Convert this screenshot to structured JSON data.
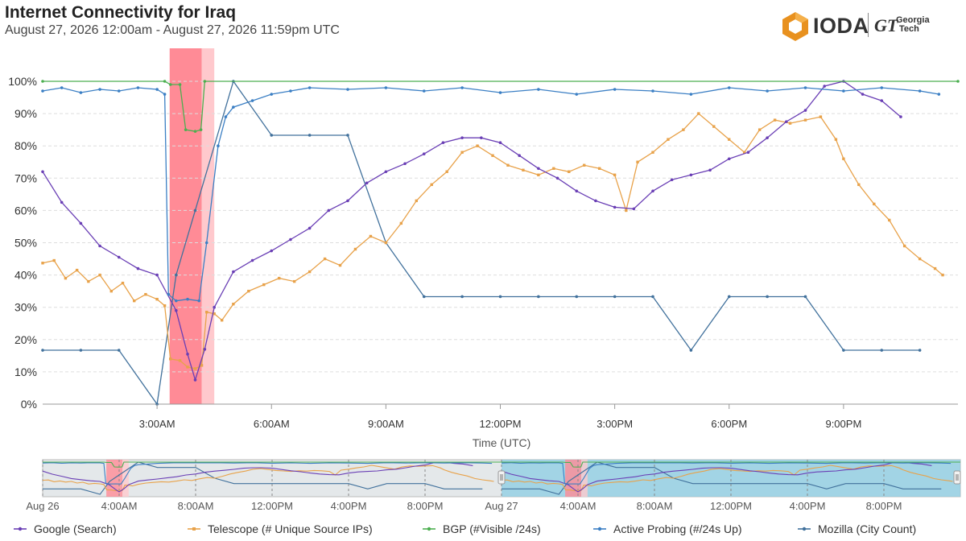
{
  "header": {
    "title": "Internet Connectivity for Iraq",
    "subtitle": "August 27, 2026 12:00am - August 27, 2026 11:59pm UTC"
  },
  "logo": {
    "main": "IODA",
    "partner_mark": "GT",
    "partner_line1": "Georgia",
    "partner_line2": "Tech"
  },
  "colors": {
    "google": "#6a3fb5",
    "telescope": "#e8a24a",
    "bgp": "#4caf50",
    "probing": "#3b7fc4",
    "mozilla": "#41719c",
    "outage": "#ff8b96",
    "outage_light": "#ffc9cd",
    "nav_window": "#8ccde3"
  },
  "chart_data": {
    "type": "line",
    "xlabel": "Time (UTC)",
    "x_unit": "hour of day (UTC)",
    "xlim": [
      0,
      24
    ],
    "ylim": [
      0,
      100
    ],
    "y_ticks": [
      "0%",
      "10%",
      "20%",
      "30%",
      "40%",
      "50%",
      "60%",
      "70%",
      "80%",
      "90%",
      "100%"
    ],
    "x_ticks": [
      {
        "x": 3,
        "label": "3:00AM"
      },
      {
        "x": 6,
        "label": "6:00AM"
      },
      {
        "x": 9,
        "label": "9:00AM"
      },
      {
        "x": 12,
        "label": "12:00PM"
      },
      {
        "x": 15,
        "label": "3:00PM"
      },
      {
        "x": 18,
        "label": "6:00PM"
      },
      {
        "x": 21,
        "label": "9:00PM"
      }
    ],
    "grid": true,
    "legend_position": "bottom",
    "outages": [
      {
        "start": 3.33,
        "end": 4.17,
        "severity": "critical"
      },
      {
        "start": 4.17,
        "end": 4.5,
        "severity": "warning"
      }
    ],
    "series": [
      {
        "name": "Google (Search)",
        "key": "google",
        "points": [
          [
            0,
            72
          ],
          [
            0.5,
            62.5
          ],
          [
            1,
            56
          ],
          [
            1.5,
            49
          ],
          [
            2,
            45.5
          ],
          [
            2.5,
            42
          ],
          [
            3,
            40
          ],
          [
            3.5,
            29
          ],
          [
            3.8,
            15.5
          ],
          [
            4,
            7.5
          ],
          [
            4.25,
            17
          ],
          [
            4.5,
            30
          ],
          [
            5,
            41
          ],
          [
            5.5,
            44.5
          ],
          [
            6,
            47.5
          ],
          [
            6.5,
            51
          ],
          [
            7,
            54.5
          ],
          [
            7.5,
            60
          ],
          [
            8,
            63
          ],
          [
            8.5,
            68.5
          ],
          [
            9,
            72
          ],
          [
            9.5,
            74.5
          ],
          [
            10,
            77.5
          ],
          [
            10.5,
            81
          ],
          [
            11,
            82.5
          ],
          [
            11.5,
            82.5
          ],
          [
            12,
            81
          ],
          [
            12.5,
            77
          ],
          [
            13,
            73
          ],
          [
            13.5,
            70
          ],
          [
            14,
            66
          ],
          [
            14.5,
            63
          ],
          [
            15,
            61
          ],
          [
            15.5,
            60.5
          ],
          [
            16,
            66
          ],
          [
            16.5,
            69.5
          ],
          [
            17,
            71
          ],
          [
            17.5,
            72.5
          ],
          [
            18,
            76
          ],
          [
            18.5,
            78
          ],
          [
            19,
            82.5
          ],
          [
            19.5,
            87.5
          ],
          [
            20,
            91
          ],
          [
            20.5,
            98.5
          ],
          [
            21,
            100
          ],
          [
            21.5,
            96
          ],
          [
            22,
            94
          ],
          [
            22.5,
            89
          ]
        ]
      },
      {
        "name": "Telescope (# Unique Source IPs)",
        "key": "telescope",
        "points": [
          [
            0,
            43.7
          ],
          [
            0.3,
            44.5
          ],
          [
            0.6,
            39
          ],
          [
            0.9,
            41.5
          ],
          [
            1.2,
            38
          ],
          [
            1.5,
            40
          ],
          [
            1.8,
            35
          ],
          [
            2.1,
            37.5
          ],
          [
            2.4,
            32
          ],
          [
            2.7,
            34
          ],
          [
            3,
            32.5
          ],
          [
            3.2,
            30.5
          ],
          [
            3.35,
            14
          ],
          [
            3.6,
            13.5
          ],
          [
            3.8,
            11.5
          ],
          [
            4,
            11
          ],
          [
            4.17,
            12
          ],
          [
            4.3,
            28.5
          ],
          [
            4.5,
            28
          ],
          [
            4.7,
            26
          ],
          [
            5,
            31
          ],
          [
            5.4,
            35
          ],
          [
            5.8,
            37
          ],
          [
            6.2,
            39
          ],
          [
            6.6,
            38
          ],
          [
            7,
            41
          ],
          [
            7.4,
            45
          ],
          [
            7.8,
            43
          ],
          [
            8.2,
            48
          ],
          [
            8.6,
            52
          ],
          [
            9,
            50
          ],
          [
            9.4,
            56
          ],
          [
            9.8,
            63
          ],
          [
            10.2,
            68
          ],
          [
            10.6,
            72
          ],
          [
            11,
            78
          ],
          [
            11.4,
            80
          ],
          [
            11.8,
            77
          ],
          [
            12.2,
            74
          ],
          [
            12.6,
            72.5
          ],
          [
            13,
            71
          ],
          [
            13.4,
            73
          ],
          [
            13.8,
            72
          ],
          [
            14.2,
            74
          ],
          [
            14.6,
            73
          ],
          [
            15,
            71
          ],
          [
            15.3,
            60
          ],
          [
            15.6,
            75
          ],
          [
            16,
            78
          ],
          [
            16.4,
            82
          ],
          [
            16.8,
            85
          ],
          [
            17.2,
            90
          ],
          [
            17.6,
            86
          ],
          [
            18,
            82
          ],
          [
            18.4,
            78
          ],
          [
            18.8,
            85
          ],
          [
            19.2,
            88
          ],
          [
            19.6,
            87
          ],
          [
            20,
            88
          ],
          [
            20.4,
            89
          ],
          [
            20.8,
            82
          ],
          [
            21,
            76
          ],
          [
            21.4,
            68
          ],
          [
            21.8,
            62
          ],
          [
            22.2,
            57
          ],
          [
            22.6,
            49
          ],
          [
            23,
            45
          ],
          [
            23.4,
            42
          ],
          [
            23.6,
            40
          ]
        ]
      },
      {
        "name": "BGP (#Visible /24s)",
        "key": "bgp",
        "points": [
          [
            0,
            100
          ],
          [
            3.2,
            100
          ],
          [
            3.35,
            99
          ],
          [
            3.6,
            99
          ],
          [
            3.75,
            85
          ],
          [
            4,
            84.5
          ],
          [
            4.15,
            85
          ],
          [
            4.25,
            100
          ],
          [
            24,
            100
          ]
        ]
      },
      {
        "name": "Active Probing (#/24s Up)",
        "key": "probing",
        "points": [
          [
            0,
            97
          ],
          [
            0.5,
            98
          ],
          [
            1,
            96.5
          ],
          [
            1.5,
            97.5
          ],
          [
            2,
            97
          ],
          [
            2.5,
            98
          ],
          [
            3,
            97.5
          ],
          [
            3.2,
            96
          ],
          [
            3.3,
            34
          ],
          [
            3.5,
            32
          ],
          [
            3.8,
            32.5
          ],
          [
            4.1,
            32
          ],
          [
            4.3,
            50
          ],
          [
            4.6,
            80
          ],
          [
            4.8,
            89
          ],
          [
            5,
            92
          ],
          [
            5.5,
            94
          ],
          [
            6,
            96
          ],
          [
            6.5,
            97
          ],
          [
            7,
            98
          ],
          [
            8,
            97.5
          ],
          [
            9,
            98
          ],
          [
            10,
            97
          ],
          [
            11,
            98
          ],
          [
            12,
            96.5
          ],
          [
            13,
            97.5
          ],
          [
            14,
            96
          ],
          [
            15,
            97.5
          ],
          [
            16,
            97
          ],
          [
            17,
            96
          ],
          [
            18,
            98
          ],
          [
            19,
            97
          ],
          [
            20,
            98
          ],
          [
            21,
            97
          ],
          [
            22,
            98
          ],
          [
            23,
            97
          ],
          [
            23.5,
            96
          ]
        ]
      },
      {
        "name": "Mozilla (City Count)",
        "key": "mozilla",
        "points": [
          [
            0,
            16.7
          ],
          [
            1,
            16.7
          ],
          [
            2,
            16.7
          ],
          [
            3,
            0
          ],
          [
            3.5,
            40
          ],
          [
            4,
            60
          ],
          [
            5,
            100
          ],
          [
            6,
            83.3
          ],
          [
            7,
            83.3
          ],
          [
            8,
            83.3
          ],
          [
            9,
            50
          ],
          [
            10,
            33.3
          ],
          [
            11,
            33.3
          ],
          [
            12,
            33.3
          ],
          [
            13,
            33.3
          ],
          [
            14,
            33.3
          ],
          [
            15,
            33.3
          ],
          [
            16,
            33.3
          ],
          [
            17,
            16.7
          ],
          [
            18,
            33.3
          ],
          [
            19,
            33.3
          ],
          [
            20,
            33.3
          ],
          [
            21,
            16.7
          ],
          [
            22,
            16.7
          ],
          [
            23,
            16.7
          ]
        ]
      }
    ]
  },
  "navigator": {
    "labels": [
      {
        "x": 0,
        "text": "Aug 26"
      },
      {
        "x": 4,
        "text": "4:00AM"
      },
      {
        "x": 8,
        "text": "8:00AM"
      },
      {
        "x": 12,
        "text": "12:00PM"
      },
      {
        "x": 16,
        "text": "4:00PM"
      },
      {
        "x": 20,
        "text": "8:00PM"
      },
      {
        "x": 24,
        "text": "Aug 27"
      },
      {
        "x": 28,
        "text": "4:00AM"
      },
      {
        "x": 32,
        "text": "8:00AM"
      },
      {
        "x": 36,
        "text": "12:00PM"
      },
      {
        "x": 40,
        "text": "4:00PM"
      },
      {
        "x": 44,
        "text": "8:00PM"
      }
    ],
    "range": [
      0,
      48
    ],
    "selected": [
      24,
      48
    ]
  }
}
